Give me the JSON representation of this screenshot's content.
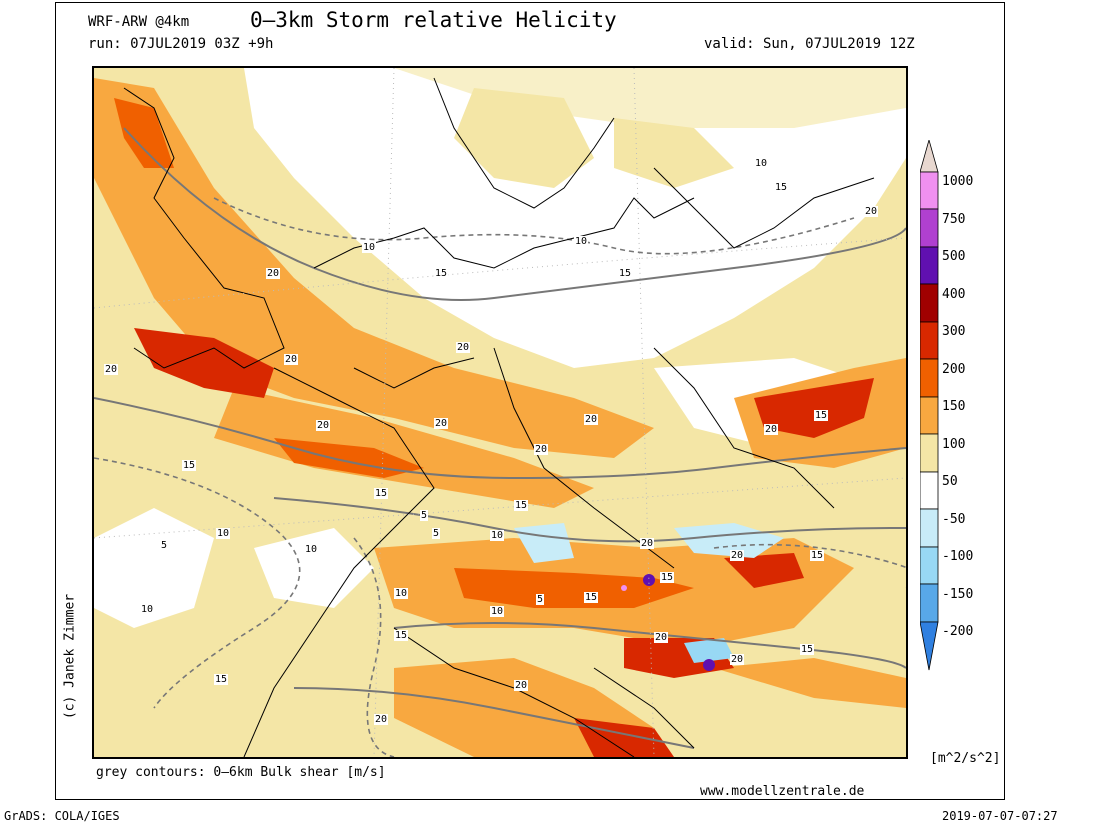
{
  "header": {
    "model": "WRF-ARW @4km",
    "title": "0–3km Storm relative Helicity",
    "run": "run: 07JUL2019 03Z +9h",
    "valid": "valid: Sun, 07JUL2019 12Z"
  },
  "credit": "(c) Janek Zimmer",
  "footer": {
    "contour_note": "grey contours: 0–6km Bulk shear [m/s]",
    "website": "www.modellzentrale.de",
    "units": "[m^2/s^2]",
    "software": "GrADS: COLA/IGES",
    "timestamp": "2019-07-07-07:27"
  },
  "legend": {
    "levels": [
      "1000",
      "750",
      "500",
      "400",
      "300",
      "200",
      "150",
      "100",
      "50",
      "-50",
      "-100",
      "-150",
      "-200"
    ],
    "colors": {
      "top": "#e8d8d0",
      "c1000": "#f090f0",
      "c750": "#b040d0",
      "c500": "#6010b0",
      "c400": "#a00000",
      "c300": "#d82800",
      "c200": "#f06000",
      "c150": "#f8a840",
      "c100": "#f4e6a6",
      "c50": "#ffffff",
      "cm50": "#c8ecf8",
      "cm100": "#98d8f4",
      "cm150": "#58a8e8",
      "cm200": "#3080e0"
    }
  },
  "contour_labels": [
    "20",
    "20",
    "20",
    "20",
    "20",
    "20",
    "20",
    "20",
    "20",
    "20",
    "20",
    "20",
    "20",
    "20",
    "20",
    "20",
    "10",
    "10",
    "10",
    "10",
    "10",
    "10",
    "10",
    "10",
    "10",
    "15",
    "15",
    "15",
    "15",
    "15",
    "15",
    "15",
    "15",
    "15",
    "15",
    "15",
    "15",
    "15",
    "5",
    "5",
    "5",
    "5"
  ]
}
